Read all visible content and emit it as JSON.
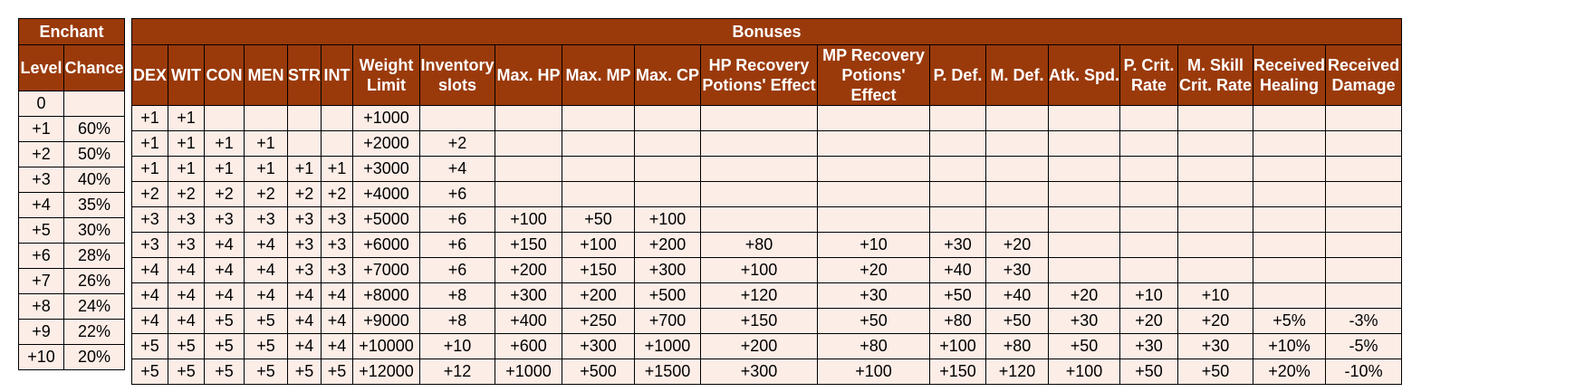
{
  "enchant": {
    "title": "Enchant",
    "columns": [
      "Level",
      "Chance"
    ],
    "rows": [
      [
        "0",
        ""
      ],
      [
        "+1",
        "60%"
      ],
      [
        "+2",
        "50%"
      ],
      [
        "+3",
        "40%"
      ],
      [
        "+4",
        "35%"
      ],
      [
        "+5",
        "30%"
      ],
      [
        "+6",
        "28%"
      ],
      [
        "+7",
        "26%"
      ],
      [
        "+8",
        "24%"
      ],
      [
        "+9",
        "22%"
      ],
      [
        "+10",
        "20%"
      ]
    ]
  },
  "bonuses": {
    "title": "Bonuses",
    "columns": [
      "DEX",
      "WIT",
      "CON",
      "MEN",
      "STR",
      "INT",
      "Weight Limit",
      "Inventory slots",
      "Max. HP",
      "Max. MP",
      "Max. CP",
      "HP Recovery Potions' Effect",
      "MP Recovery Potions' Effect",
      "P. Def.",
      "M. Def.",
      "Atk. Spd.",
      "P. Crit. Rate",
      "M. Skill Crit. Rate",
      "Received Healing",
      "Received Damage"
    ],
    "rows": [
      [
        "+1",
        "+1",
        "",
        "",
        "",
        "",
        "+1000",
        "",
        "",
        "",
        "",
        "",
        "",
        "",
        "",
        "",
        "",
        "",
        "",
        ""
      ],
      [
        "+1",
        "+1",
        "+1",
        "+1",
        "",
        "",
        "+2000",
        "+2",
        "",
        "",
        "",
        "",
        "",
        "",
        "",
        "",
        "",
        "",
        "",
        ""
      ],
      [
        "+1",
        "+1",
        "+1",
        "+1",
        "+1",
        "+1",
        "+3000",
        "+4",
        "",
        "",
        "",
        "",
        "",
        "",
        "",
        "",
        "",
        "",
        "",
        ""
      ],
      [
        "+2",
        "+2",
        "+2",
        "+2",
        "+2",
        "+2",
        "+4000",
        "+6",
        "",
        "",
        "",
        "",
        "",
        "",
        "",
        "",
        "",
        "",
        "",
        ""
      ],
      [
        "+3",
        "+3",
        "+3",
        "+3",
        "+3",
        "+3",
        "+5000",
        "+6",
        "+100",
        "+50",
        "+100",
        "",
        "",
        "",
        "",
        "",
        "",
        "",
        "",
        ""
      ],
      [
        "+3",
        "+3",
        "+4",
        "+4",
        "+3",
        "+3",
        "+6000",
        "+6",
        "+150",
        "+100",
        "+200",
        "+80",
        "+10",
        "+30",
        "+20",
        "",
        "",
        "",
        "",
        ""
      ],
      [
        "+4",
        "+4",
        "+4",
        "+4",
        "+3",
        "+3",
        "+7000",
        "+6",
        "+200",
        "+150",
        "+300",
        "+100",
        "+20",
        "+40",
        "+30",
        "",
        "",
        "",
        "",
        ""
      ],
      [
        "+4",
        "+4",
        "+4",
        "+4",
        "+4",
        "+4",
        "+8000",
        "+8",
        "+300",
        "+200",
        "+500",
        "+120",
        "+30",
        "+50",
        "+40",
        "+20",
        "+10",
        "+10",
        "",
        ""
      ],
      [
        "+4",
        "+4",
        "+5",
        "+5",
        "+4",
        "+4",
        "+9000",
        "+8",
        "+400",
        "+250",
        "+700",
        "+150",
        "+50",
        "+80",
        "+50",
        "+30",
        "+20",
        "+20",
        "+5%",
        "-3%"
      ],
      [
        "+5",
        "+5",
        "+5",
        "+5",
        "+4",
        "+4",
        "+10000",
        "+10",
        "+600",
        "+300",
        "+1000",
        "+200",
        "+80",
        "+100",
        "+80",
        "+50",
        "+30",
        "+30",
        "+10%",
        "-5%"
      ],
      [
        "+5",
        "+5",
        "+5",
        "+5",
        "+5",
        "+5",
        "+12000",
        "+12",
        "+1000",
        "+500",
        "+1500",
        "+300",
        "+100",
        "+150",
        "+120",
        "+100",
        "+50",
        "+50",
        "+20%",
        "-10%"
      ]
    ]
  }
}
